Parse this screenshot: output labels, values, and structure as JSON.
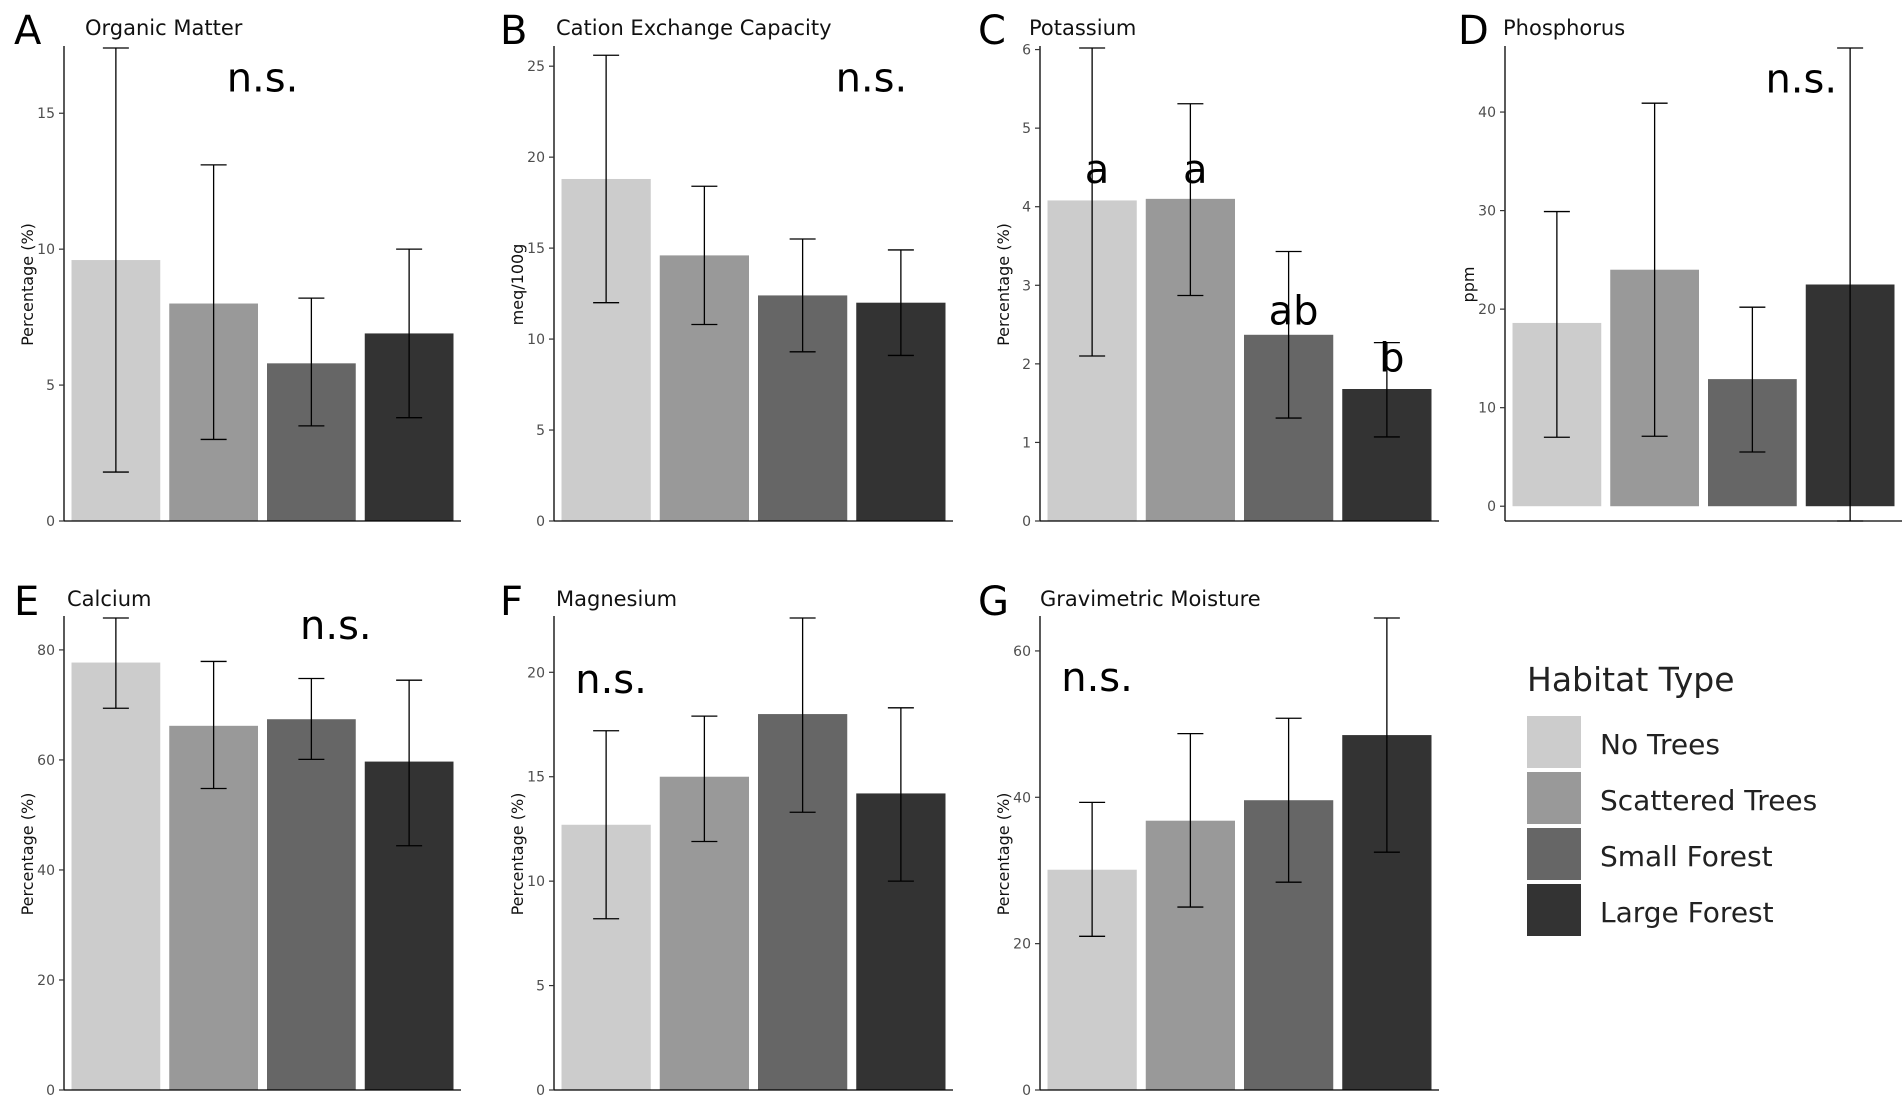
{
  "chart_data": [
    {
      "type": "bar",
      "letter": "A",
      "title": "Organic Matter",
      "ylabel": "Percentage (%)",
      "categories": [
        "No Trees",
        "Scattered Trees",
        "Small Forest",
        "Large Forest"
      ],
      "values": [
        9.6,
        8.0,
        5.8,
        6.9
      ],
      "error_low": [
        1.8,
        3.0,
        3.5,
        3.8
      ],
      "error_high": [
        17.4,
        13.1,
        8.2,
        10.0
      ],
      "ylim": [
        0,
        17.4
      ],
      "yticks": [
        0,
        5,
        10,
        15
      ],
      "annotations": [
        {
          "text": "n.s.",
          "x": 2.5,
          "y": 15.8
        }
      ]
    },
    {
      "type": "bar",
      "letter": "B",
      "title": "Cation Exchange Capacity",
      "ylabel": "meq/100g",
      "categories": [
        "No Trees",
        "Scattered Trees",
        "Small Forest",
        "Large Forest"
      ],
      "values": [
        18.8,
        14.6,
        12.4,
        12.0
      ],
      "error_low": [
        12.0,
        10.8,
        9.3,
        9.1
      ],
      "error_high": [
        25.6,
        18.4,
        15.5,
        14.9
      ],
      "ylim": [
        0,
        26
      ],
      "yticks": [
        0,
        5,
        10,
        15,
        20,
        25
      ],
      "annotations": [
        {
          "text": "n.s.",
          "x": 3.7,
          "y": 23.6
        }
      ]
    },
    {
      "type": "bar",
      "letter": "C",
      "title": "Potassium",
      "ylabel": "Percentage (%)",
      "categories": [
        "No Trees",
        "Scattered Trees",
        "Small Forest",
        "Large Forest"
      ],
      "values": [
        4.08,
        4.1,
        2.37,
        1.68
      ],
      "error_low": [
        2.1,
        2.87,
        1.31,
        1.07
      ],
      "error_high": [
        6.02,
        5.31,
        3.43,
        2.27
      ],
      "ylim": [
        0,
        6.02
      ],
      "yticks": [
        0,
        1,
        2,
        3,
        4,
        5,
        6
      ],
      "annotations": [
        {
          "text": "a",
          "x": 1.05,
          "y": 4.3
        },
        {
          "text": "a",
          "x": 2.05,
          "y": 4.3
        },
        {
          "text": "ab",
          "x": 3.05,
          "y": 2.5
        },
        {
          "text": "b",
          "x": 4.05,
          "y": 1.9
        }
      ]
    },
    {
      "type": "bar",
      "letter": "D",
      "title": "Phosphorus",
      "ylabel": "ppm",
      "categories": [
        "No Trees",
        "Scattered Trees",
        "Small Forest",
        "Large Forest"
      ],
      "values": [
        18.6,
        24.0,
        12.9,
        22.5
      ],
      "error_low": [
        7.0,
        7.1,
        5.5,
        -1.5
      ],
      "error_high": [
        29.9,
        40.9,
        20.2,
        46.5
      ],
      "ylim": [
        -1.5,
        46.5
      ],
      "yticks": [
        0,
        10,
        20,
        30,
        40
      ],
      "annotations": [
        {
          "text": "n.s.",
          "x": 3.5,
          "y": 42.0
        }
      ]
    },
    {
      "type": "bar",
      "letter": "E",
      "title": "Calcium",
      "ylabel": "Percentage (%)",
      "categories": [
        "No Trees",
        "Scattered Trees",
        "Small Forest",
        "Large Forest"
      ],
      "values": [
        77.7,
        66.2,
        67.4,
        59.7
      ],
      "error_low": [
        69.4,
        54.8,
        60.1,
        44.4
      ],
      "error_high": [
        85.8,
        77.9,
        74.8,
        74.5
      ],
      "ylim": [
        0,
        85.8
      ],
      "yticks": [
        0,
        20,
        40,
        60,
        80
      ],
      "annotations": [
        {
          "text": "n.s.",
          "x": 3.25,
          "y": 82.0
        }
      ]
    },
    {
      "type": "bar",
      "letter": "F",
      "title": "Magnesium",
      "ylabel": "Percentage (%)",
      "categories": [
        "No Trees",
        "Scattered Trees",
        "Small Forest",
        "Large Forest"
      ],
      "values": [
        12.7,
        15.0,
        18.0,
        14.2
      ],
      "error_low": [
        8.2,
        11.9,
        13.3,
        10.0
      ],
      "error_high": [
        17.2,
        17.9,
        22.6,
        18.3
      ],
      "ylim": [
        0,
        22.6
      ],
      "yticks": [
        0,
        5,
        10,
        15,
        20
      ],
      "annotations": [
        {
          "text": "n.s.",
          "x": 1.05,
          "y": 19.0
        }
      ]
    },
    {
      "type": "bar",
      "letter": "G",
      "title": "Gravimetric Moisture",
      "ylabel": "Percentage (%)",
      "categories": [
        "No Trees",
        "Scattered Trees",
        "Small Forest",
        "Large Forest"
      ],
      "values": [
        30.1,
        36.8,
        39.6,
        48.5
      ],
      "error_low": [
        21.0,
        25.0,
        28.4,
        32.5
      ],
      "error_high": [
        39.3,
        48.7,
        50.8,
        64.5
      ],
      "ylim": [
        0,
        64.5
      ],
      "yticks": [
        0,
        20,
        40,
        60
      ],
      "annotations": [
        {
          "text": "n.s.",
          "x": 1.05,
          "y": 54.5
        }
      ]
    }
  ],
  "legend": {
    "title": "Habitat Type",
    "items": [
      {
        "label": "No Trees",
        "color": "#cccccc"
      },
      {
        "label": "Scattered Trees",
        "color": "#999999"
      },
      {
        "label": "Small Forest",
        "color": "#666666"
      },
      {
        "label": "Large Forest",
        "color": "#333333"
      }
    ]
  }
}
